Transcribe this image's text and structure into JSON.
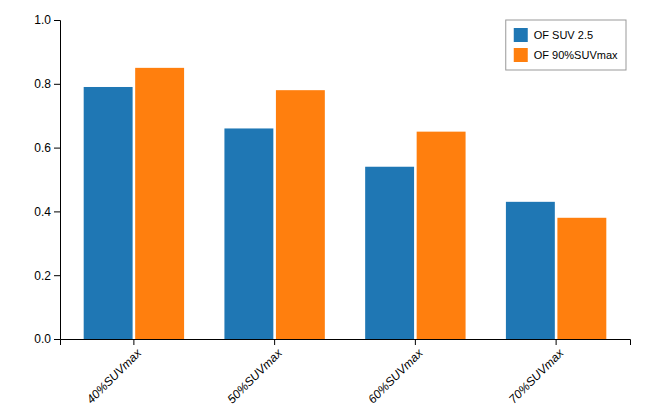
{
  "chart_data": {
    "type": "bar",
    "categories": [
      "40%SUVmax",
      "50%SUVmax",
      "60%SUVmax",
      "70%SUVmax"
    ],
    "series": [
      {
        "name": "OF SUV 2.5",
        "values": [
          0.79,
          0.66,
          0.54,
          0.43
        ]
      },
      {
        "name": "OF 90%SUVmax",
        "values": [
          0.85,
          0.78,
          0.65,
          0.38
        ]
      }
    ],
    "ylim": [
      0.0,
      1.0
    ],
    "yticks": [
      {
        "value": 0.0,
        "label": "0.0"
      },
      0.2,
      0.4,
      0.6,
      0.8,
      {
        "value": 1.0,
        "label": "1.0"
      }
    ],
    "legend": "upper right",
    "grid": false
  }
}
